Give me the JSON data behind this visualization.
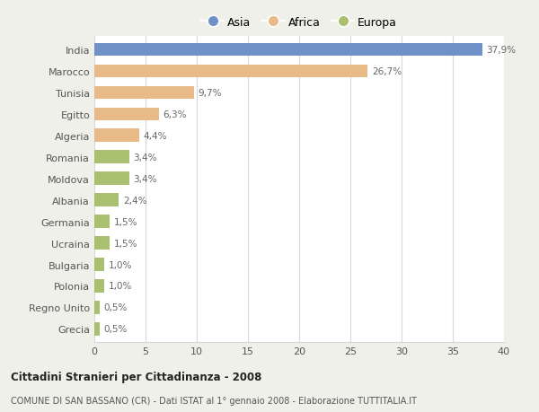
{
  "countries": [
    "India",
    "Marocco",
    "Tunisia",
    "Egitto",
    "Algeria",
    "Romania",
    "Moldova",
    "Albania",
    "Germania",
    "Ucraina",
    "Bulgaria",
    "Polonia",
    "Regno Unito",
    "Grecia"
  ],
  "values": [
    37.9,
    26.7,
    9.7,
    6.3,
    4.4,
    3.4,
    3.4,
    2.4,
    1.5,
    1.5,
    1.0,
    1.0,
    0.5,
    0.5
  ],
  "labels": [
    "37,9%",
    "26,7%",
    "9,7%",
    "6,3%",
    "4,4%",
    "3,4%",
    "3,4%",
    "2,4%",
    "1,5%",
    "1,5%",
    "1,0%",
    "1,0%",
    "0,5%",
    "0,5%"
  ],
  "categories": [
    "Asia",
    "Africa",
    "Africa",
    "Africa",
    "Africa",
    "Europa",
    "Europa",
    "Europa",
    "Europa",
    "Europa",
    "Europa",
    "Europa",
    "Europa",
    "Europa"
  ],
  "colors": {
    "Asia": "#7090c8",
    "Africa": "#e8ba88",
    "Europa": "#a8c070"
  },
  "title1": "Cittadini Stranieri per Cittadinanza - 2008",
  "title2": "COMUNE DI SAN BASSANO (CR) - Dati ISTAT al 1° gennaio 2008 - Elaborazione TUTTITALIA.IT",
  "legend_labels": [
    "Asia",
    "Africa",
    "Europa"
  ],
  "xlim": [
    0,
    40
  ],
  "xticks": [
    0,
    5,
    10,
    15,
    20,
    25,
    30,
    35,
    40
  ],
  "fig_bg": "#f0f0ea",
  "plot_bg": "#ffffff",
  "grid_color": "#d8d8d8",
  "text_color": "#555555",
  "label_color": "#666666"
}
